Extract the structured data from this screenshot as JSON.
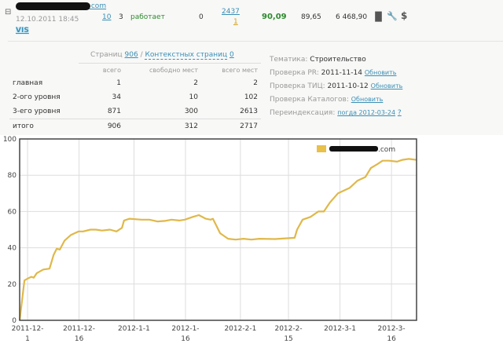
{
  "site_row": {
    "domain_suffix": ".com",
    "date": "12.10.2011 18:45",
    "vis_label": "VIS",
    "col_links": "10",
    "col_count": "3",
    "status": "работает",
    "col_zero": "0",
    "col_top": "2437",
    "col_bottom": "1",
    "score": "90,09",
    "value2": "89,65",
    "value3": "6 468,90",
    "icons": [
      "bar-chart-icon",
      "wrench-icon",
      "dollar-icon"
    ],
    "expand_icon": "minus-box"
  },
  "pages": {
    "label": "Страниц",
    "count": "906",
    "sep": "/",
    "context_label": "Контекстных страниц",
    "context_count": "0",
    "headers": [
      "",
      "всего",
      "свободно мест",
      "всего мест"
    ],
    "rows": [
      [
        "главная",
        "1",
        "2",
        "2"
      ],
      [
        "2-ого уровня",
        "34",
        "10",
        "102"
      ],
      [
        "3-его уровня",
        "871",
        "300",
        "2613"
      ]
    ],
    "total": [
      "итого",
      "906",
      "312",
      "2717"
    ]
  },
  "info": {
    "topic_label": "Тематика:",
    "topic": "Строительство",
    "pr_label": "Проверка PR:",
    "pr_date": "2011-11-14",
    "tic_label": "Проверка ТИЦ:",
    "tic_date": "2011-10-12",
    "cat_label": "Проверка Каталогов:",
    "update": "Обновить",
    "reindex_label": "Переиндексация:",
    "reindex_value": "погда 2012-03-24",
    "help": "?"
  },
  "chart_data": {
    "type": "line",
    "title": "",
    "xlabel": "",
    "ylabel": "",
    "ylim": [
      0,
      100
    ],
    "yticks": [
      0,
      20,
      40,
      60,
      80,
      100
    ],
    "xlim_days_from_2011_12_01": [
      -2.3,
      113.3
    ],
    "xticks": [
      {
        "day": 0,
        "l1": "2011-12-",
        "l2": "1"
      },
      {
        "day": 15,
        "l1": "2011-12-",
        "l2": "16"
      },
      {
        "day": 31,
        "l1": "2012-1-1",
        "l2": ""
      },
      {
        "day": 46,
        "l1": "2012-1-",
        "l2": "16"
      },
      {
        "day": 62,
        "l1": "2012-2-1",
        "l2": ""
      },
      {
        "day": 76,
        "l1": "2012-2-",
        "l2": "15"
      },
      {
        "day": 91,
        "l1": "2012-3-1",
        "l2": ""
      },
      {
        "day": 106,
        "l1": "2012-3-",
        "l2": "16"
      }
    ],
    "legend": {
      "label": ".com",
      "position": "top-right",
      "color": "#e8c04a"
    },
    "grid": true,
    "series": [
      {
        "name": ".com",
        "color": "#e0b84a",
        "points": [
          [
            -2.3,
            0
          ],
          [
            -0.9,
            22
          ],
          [
            0,
            23
          ],
          [
            1.1,
            24
          ],
          [
            1.8,
            23.5
          ],
          [
            2.7,
            26
          ],
          [
            4.6,
            28
          ],
          [
            6.4,
            28.5
          ],
          [
            7.6,
            36
          ],
          [
            8.5,
            39.5
          ],
          [
            9.4,
            39
          ],
          [
            10.8,
            44
          ],
          [
            12.6,
            47
          ],
          [
            14.9,
            49
          ],
          [
            16.2,
            49
          ],
          [
            18.3,
            50
          ],
          [
            19.9,
            50
          ],
          [
            21.7,
            49.5
          ],
          [
            24,
            50
          ],
          [
            25.9,
            49
          ],
          [
            27.5,
            51
          ],
          [
            28.1,
            55
          ],
          [
            29.7,
            56
          ],
          [
            33.2,
            55.5
          ],
          [
            35.5,
            55.5
          ],
          [
            37.8,
            54.5
          ],
          [
            40,
            54.8
          ],
          [
            41.9,
            55.5
          ],
          [
            44.2,
            55
          ],
          [
            45.8,
            55.5
          ],
          [
            48.1,
            57
          ],
          [
            49.9,
            58
          ],
          [
            51.9,
            56
          ],
          [
            53.3,
            55.5
          ],
          [
            54,
            56
          ],
          [
            56.1,
            48
          ],
          [
            58.4,
            45
          ],
          [
            60.6,
            44.5
          ],
          [
            62.9,
            45
          ],
          [
            65.2,
            44.5
          ],
          [
            67.5,
            45
          ],
          [
            72.1,
            44.8
          ],
          [
            77.8,
            45.5
          ],
          [
            78.5,
            50
          ],
          [
            80.1,
            55.5
          ],
          [
            82.4,
            57
          ],
          [
            84.7,
            60
          ],
          [
            86.3,
            60
          ],
          [
            88.1,
            65
          ],
          [
            90.4,
            70
          ],
          [
            93.8,
            73
          ],
          [
            96.1,
            77
          ],
          [
            98.4,
            79
          ],
          [
            100,
            84
          ],
          [
            101.8,
            86
          ],
          [
            103.4,
            88
          ],
          [
            105.3,
            88
          ],
          [
            107.6,
            87.5
          ],
          [
            109.2,
            88.5
          ],
          [
            111,
            89
          ],
          [
            113.3,
            88.5
          ]
        ]
      }
    ]
  }
}
